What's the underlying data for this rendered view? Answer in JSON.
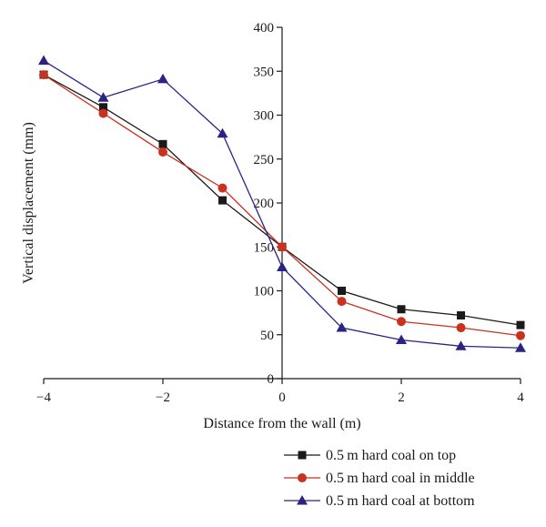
{
  "chart_data": {
    "type": "line",
    "xlabel": "Distance from the wall (m)",
    "ylabel": "Vertical displacement (mm)",
    "xlim": [
      -4,
      4
    ],
    "ylim": [
      0,
      400
    ],
    "x_ticks": [
      -4,
      -2,
      0,
      2,
      4
    ],
    "x_tick_labels": [
      "−4",
      "−2",
      "0",
      "2",
      "4"
    ],
    "y_ticks": [
      0,
      50,
      100,
      150,
      200,
      250,
      300,
      350,
      400
    ],
    "y_tick_labels": [
      "0",
      "50",
      "100",
      "150",
      "200",
      "250",
      "300",
      "350",
      "400"
    ],
    "x": [
      -4,
      -3,
      -2,
      -1,
      0,
      1,
      2,
      3,
      4
    ],
    "grid": false,
    "legend_position": "bottom-right, below plot",
    "series": [
      {
        "name": "0.5 m hard coal on top",
        "marker": "square",
        "color": "#1a1a1a",
        "values": [
          346,
          309,
          267,
          203,
          150,
          100,
          79,
          72,
          61
        ]
      },
      {
        "name": "0.5 m hard coal in middle",
        "marker": "circle",
        "color": "#c8321e",
        "values": [
          346,
          302,
          258,
          217,
          150,
          88,
          65,
          58,
          49
        ]
      },
      {
        "name": "0.5 m hard coal at bottom",
        "marker": "triangle",
        "color": "#2b2383",
        "values": [
          362,
          320,
          341,
          279,
          127,
          58,
          44,
          37,
          35
        ]
      }
    ]
  }
}
